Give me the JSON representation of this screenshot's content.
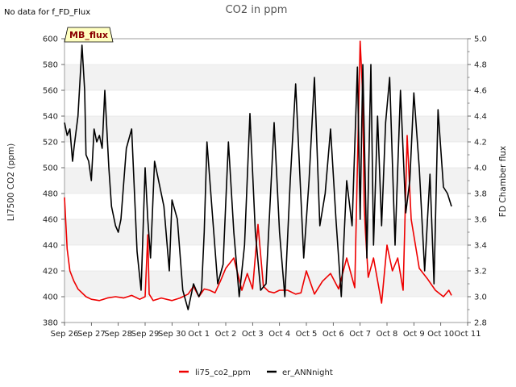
{
  "chart_data": {
    "type": "line",
    "title": "CO2 in ppm",
    "status_note": "No data for f_FD_Flux",
    "badge": "MB_flux",
    "ylabel": "LI7500 CO2 (ppm)",
    "y2label": "FD Chamber flux",
    "ylim": [
      380,
      600
    ],
    "y2lim": [
      2.8,
      5.0
    ],
    "xlim": [
      "Sep 26",
      "Oct 11"
    ],
    "x_ticks": [
      "Sep 26",
      "Sep 27",
      "Sep 28",
      "Sep 29",
      "Sep 30",
      "Oct 1",
      "Oct 2",
      "Oct 3",
      "Oct 4",
      "Oct 5",
      "Oct 6",
      "Oct 7",
      "Oct 8",
      "Oct 9",
      "Oct 10",
      "Oct 11"
    ],
    "y_ticks": [
      380,
      400,
      420,
      440,
      460,
      480,
      500,
      520,
      540,
      560,
      580,
      600
    ],
    "y2_ticks": [
      2.8,
      3.0,
      3.2,
      3.4,
      3.6,
      3.8,
      4.0,
      4.2,
      4.4,
      4.6,
      4.8,
      5.0
    ],
    "grid": true,
    "legend_position": "bottom-center",
    "series": [
      {
        "name": "li75_co2_ppm",
        "axis": "left",
        "color": "#ee0000",
        "x": [
          0.0,
          0.1,
          0.2,
          0.35,
          0.5,
          0.8,
          1.0,
          1.3,
          1.6,
          1.9,
          2.2,
          2.5,
          2.8,
          3.0,
          3.1,
          3.15,
          3.3,
          3.6,
          4.0,
          4.3,
          4.6,
          4.8,
          5.0,
          5.2,
          5.4,
          5.6,
          5.8,
          6.0,
          6.3,
          6.6,
          6.8,
          7.0,
          7.2,
          7.4,
          7.6,
          7.8,
          8.0,
          8.3,
          8.6,
          8.8,
          9.0,
          9.3,
          9.6,
          9.9,
          10.2,
          10.5,
          10.8,
          11.0,
          11.1,
          11.15,
          11.2,
          11.3,
          11.5,
          11.8,
          12.0,
          12.2,
          12.4,
          12.6,
          12.75,
          12.9,
          13.2,
          13.5,
          13.8,
          14.1,
          14.3,
          14.4
        ],
        "values": [
          477,
          437,
          420,
          412,
          406,
          400,
          398,
          397,
          399,
          400,
          399,
          401,
          398,
          400,
          448,
          402,
          397,
          399,
          397,
          399,
          402,
          408,
          400,
          406,
          405,
          403,
          412,
          422,
          430,
          405,
          418,
          406,
          456,
          408,
          404,
          403,
          405,
          405,
          402,
          403,
          420,
          402,
          412,
          418,
          406,
          430,
          407,
          598,
          555,
          470,
          450,
          415,
          430,
          395,
          440,
          420,
          430,
          405,
          525,
          460,
          422,
          414,
          405,
          400,
          405,
          401
        ]
      },
      {
        "name": "er_ANNnight",
        "axis": "right",
        "color": "#000000",
        "x": [
          0.0,
          0.1,
          0.2,
          0.3,
          0.35,
          0.5,
          0.65,
          0.75,
          0.8,
          0.9,
          1.0,
          1.1,
          1.2,
          1.3,
          1.4,
          1.5,
          1.65,
          1.75,
          1.9,
          2.0,
          2.1,
          2.3,
          2.5,
          2.7,
          2.85,
          3.0,
          3.1,
          3.2,
          3.35,
          3.5,
          3.7,
          3.9,
          4.0,
          4.2,
          4.4,
          4.6,
          4.8,
          5.0,
          5.1,
          5.2,
          5.3,
          5.5,
          5.7,
          5.9,
          6.1,
          6.3,
          6.5,
          6.7,
          6.9,
          7.1,
          7.3,
          7.5,
          7.8,
          8.0,
          8.2,
          8.4,
          8.6,
          8.9,
          9.1,
          9.3,
          9.5,
          9.7,
          9.9,
          10.1,
          10.3,
          10.5,
          10.7,
          10.9,
          11.0,
          11.1,
          11.25,
          11.4,
          11.5,
          11.65,
          11.8,
          11.95,
          12.1,
          12.3,
          12.5,
          12.7,
          12.85,
          13.0,
          13.2,
          13.4,
          13.6,
          13.75,
          13.9,
          14.1,
          14.25,
          14.4
        ],
        "values": [
          4.35,
          4.25,
          4.3,
          4.05,
          4.15,
          4.4,
          4.95,
          4.6,
          4.1,
          4.05,
          3.9,
          4.3,
          4.2,
          4.25,
          4.15,
          4.6,
          4.0,
          3.7,
          3.55,
          3.5,
          3.6,
          4.15,
          4.3,
          3.35,
          3.05,
          4.0,
          3.6,
          3.3,
          4.05,
          3.9,
          3.7,
          3.2,
          3.75,
          3.6,
          3.05,
          2.9,
          3.1,
          3.0,
          3.05,
          3.5,
          4.2,
          3.65,
          3.1,
          3.25,
          4.2,
          3.5,
          3.0,
          3.4,
          4.42,
          3.5,
          3.05,
          3.1,
          4.35,
          3.5,
          3.0,
          3.9,
          4.65,
          3.3,
          3.9,
          4.7,
          3.55,
          3.8,
          4.3,
          3.6,
          3.0,
          3.9,
          3.55,
          4.78,
          3.6,
          4.8,
          3.3,
          4.8,
          3.4,
          4.4,
          3.55,
          4.35,
          4.7,
          3.4,
          4.6,
          3.65,
          3.9,
          4.58,
          4.0,
          3.2,
          3.95,
          3.1,
          4.45,
          3.85,
          3.8,
          3.7
        ]
      }
    ]
  }
}
